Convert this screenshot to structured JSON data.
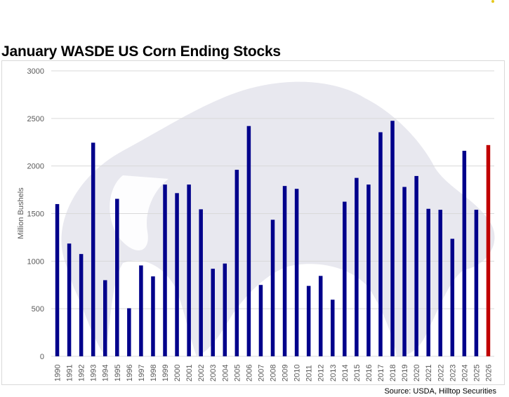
{
  "title": "January WASDE US Corn Ending Stocks",
  "source": "Source: USDA, Hilltop Securities",
  "watermark_icon": "bull-silhouette-icon",
  "colors": {
    "bar": "#00008b",
    "highlight": "#c00000",
    "grid": "#d9d9d9",
    "watermark": "#e4e4ec"
  },
  "chart_data": {
    "type": "bar",
    "title": "January WASDE US Corn Ending Stocks",
    "xlabel": "",
    "ylabel": "Million Bushels",
    "ylim": [
      0,
      3000
    ],
    "yticks": [
      0,
      500,
      1000,
      1500,
      2000,
      2500,
      3000
    ],
    "grid": true,
    "legend": "none",
    "categories": [
      "1990",
      "1991",
      "1992",
      "1993",
      "1994",
      "1995",
      "1996",
      "1997",
      "1998",
      "1999",
      "2000",
      "2001",
      "2002",
      "2003",
      "2004",
      "2005",
      "2006",
      "2007",
      "2008",
      "2009",
      "2010",
      "2011",
      "2012",
      "2013",
      "2014",
      "2015",
      "2016",
      "2017",
      "2018",
      "2019",
      "2020",
      "2021",
      "2022",
      "2023",
      "2024",
      "2025",
      "2026"
    ],
    "values": [
      1600,
      1185,
      1075,
      2245,
      800,
      1655,
      505,
      955,
      840,
      1805,
      1715,
      1805,
      1545,
      920,
      975,
      1960,
      2420,
      750,
      1435,
      1790,
      1760,
      740,
      845,
      595,
      1625,
      1875,
      1805,
      2355,
      2475,
      1780,
      1895,
      1550,
      1540,
      1235,
      2160,
      1540,
      2220
    ],
    "highlight_category": "2026"
  }
}
